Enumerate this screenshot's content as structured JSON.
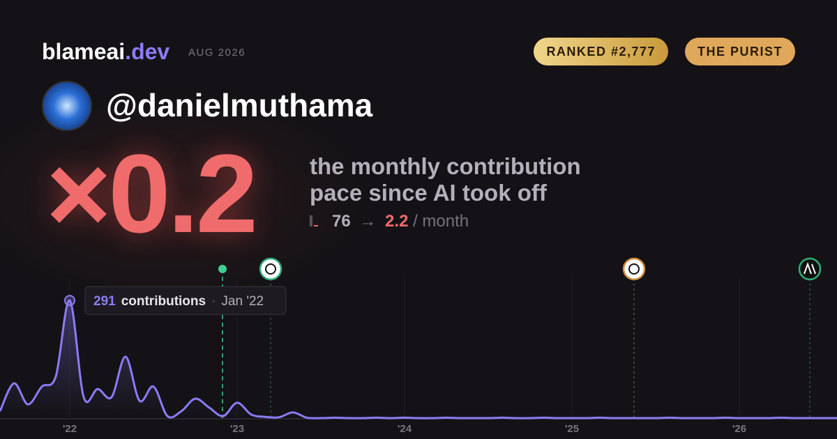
{
  "header": {
    "brand": "blameai",
    "brand_suffix": ".dev",
    "date": "AUG 2026",
    "badges": [
      "RANKED #2,777",
      "THE PURIST"
    ]
  },
  "profile": {
    "handle": "@danielmuthama"
  },
  "stat": {
    "multiplier": "×0.2",
    "description": [
      "the monthly contribution",
      "pace since AI took off"
    ],
    "before": "76",
    "arrow": "→",
    "after": "2.2",
    "unit": "/ month"
  },
  "tooltip": {
    "unit": "contributions",
    "separator": "·",
    "date": "Jan '22"
  },
  "chart_data": {
    "type": "line",
    "categories": [
      null,
      null,
      null,
      null,
      null,
      "'22",
      null,
      null,
      null,
      null,
      null,
      null,
      null,
      null,
      null,
      null,
      null,
      "'23",
      null,
      null,
      null,
      null,
      null,
      null,
      null,
      null,
      null,
      null,
      null,
      "'24",
      null,
      null,
      null,
      null,
      null,
      null,
      null,
      null,
      null,
      null,
      null,
      "'25",
      null,
      null,
      null,
      null,
      null,
      null,
      null,
      null,
      null,
      null,
      null,
      "'26",
      null,
      null,
      null,
      null,
      null,
      null,
      null
    ],
    "series": [
      {
        "name": "contributions",
        "color": "#8b7cf6",
        "values": [
          17,
          86,
          34,
          78,
          103,
          291,
          52,
          72,
          52,
          152,
          43,
          78,
          5,
          17,
          48,
          26,
          5,
          38,
          9,
          3,
          2,
          14,
          1,
          0,
          1,
          0,
          0,
          1,
          0,
          1,
          0,
          0,
          1,
          0,
          0,
          0,
          1,
          0,
          0,
          1,
          0,
          0,
          0,
          1,
          0,
          0,
          0,
          0,
          1,
          0,
          0,
          0,
          1,
          0,
          0,
          0,
          1,
          0,
          0,
          0,
          0
        ]
      }
    ],
    "ylim": [
      0,
      300
    ],
    "highlight_index": 5
  }
}
